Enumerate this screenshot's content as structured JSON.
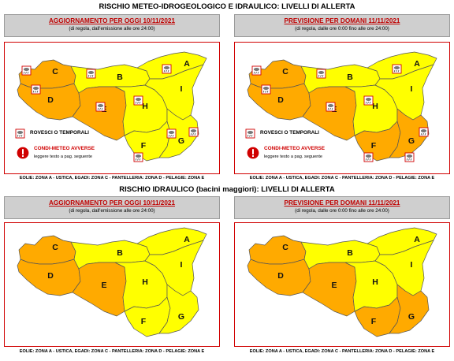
{
  "titles": {
    "top": "RISCHIO METEO-IDROGEOLOGICO E IDRAULICO: LIVELLI DI ALLERTA",
    "middle": "RISCHIO IDRAULICO (bacini maggiori): LIVELLI DI ALLERTA"
  },
  "panels": {
    "today_title": "AGGIORNAMENTO PER OGGI 10/11/2021",
    "today_sub": "(di regola, dall'emissione alle ore 24:00)",
    "tomorrow_title": "PREVISIONE PER DOMANI 11/11/2021",
    "tomorrow_sub": "(di regola, dalle ore 0:00 fino alle ore 24:00)"
  },
  "legend": {
    "storms": "ROVESCI O TEMPORALI",
    "adverse": "CONDI-METEO AVVERSE",
    "adverse_sub": "leggere testo a pag. seguente"
  },
  "footer": "EOLIE: ZONA A - USTICA, EGADI: ZONA C - PANTELLERIA: ZONA D - PELAGIE: ZONA E",
  "zones": {
    "A": "A",
    "B": "B",
    "C": "C",
    "D": "D",
    "E": "E",
    "F": "F",
    "G": "G",
    "H": "H",
    "I": "I"
  },
  "colors": {
    "yellow": "#ffff00",
    "orange": "#ffaa00",
    "border_red": "#d00000",
    "header_grey": "#cfcfcf"
  },
  "icons": [
    "thunderstorm-icon",
    "warning-icon"
  ],
  "alert_levels": {
    "map1_today": {
      "A": "yellow",
      "B": "yellow",
      "C": "orange",
      "D": "orange",
      "E": "orange",
      "F": "yellow",
      "G": "yellow",
      "H": "yellow",
      "I": "yellow"
    },
    "map2_tomorrow": {
      "A": "yellow",
      "B": "yellow",
      "C": "orange",
      "D": "orange",
      "E": "orange",
      "F": "orange",
      "G": "orange",
      "H": "yellow",
      "I": "yellow"
    },
    "map3_today": {
      "A": "yellow",
      "B": "yellow",
      "C": "orange",
      "D": "orange",
      "E": "orange",
      "F": "yellow",
      "G": "yellow",
      "H": "yellow",
      "I": "yellow"
    },
    "map4_tomorrow": {
      "A": "yellow",
      "B": "yellow",
      "C": "orange",
      "D": "orange",
      "E": "orange",
      "F": "orange",
      "G": "orange",
      "H": "yellow",
      "I": "yellow"
    }
  }
}
